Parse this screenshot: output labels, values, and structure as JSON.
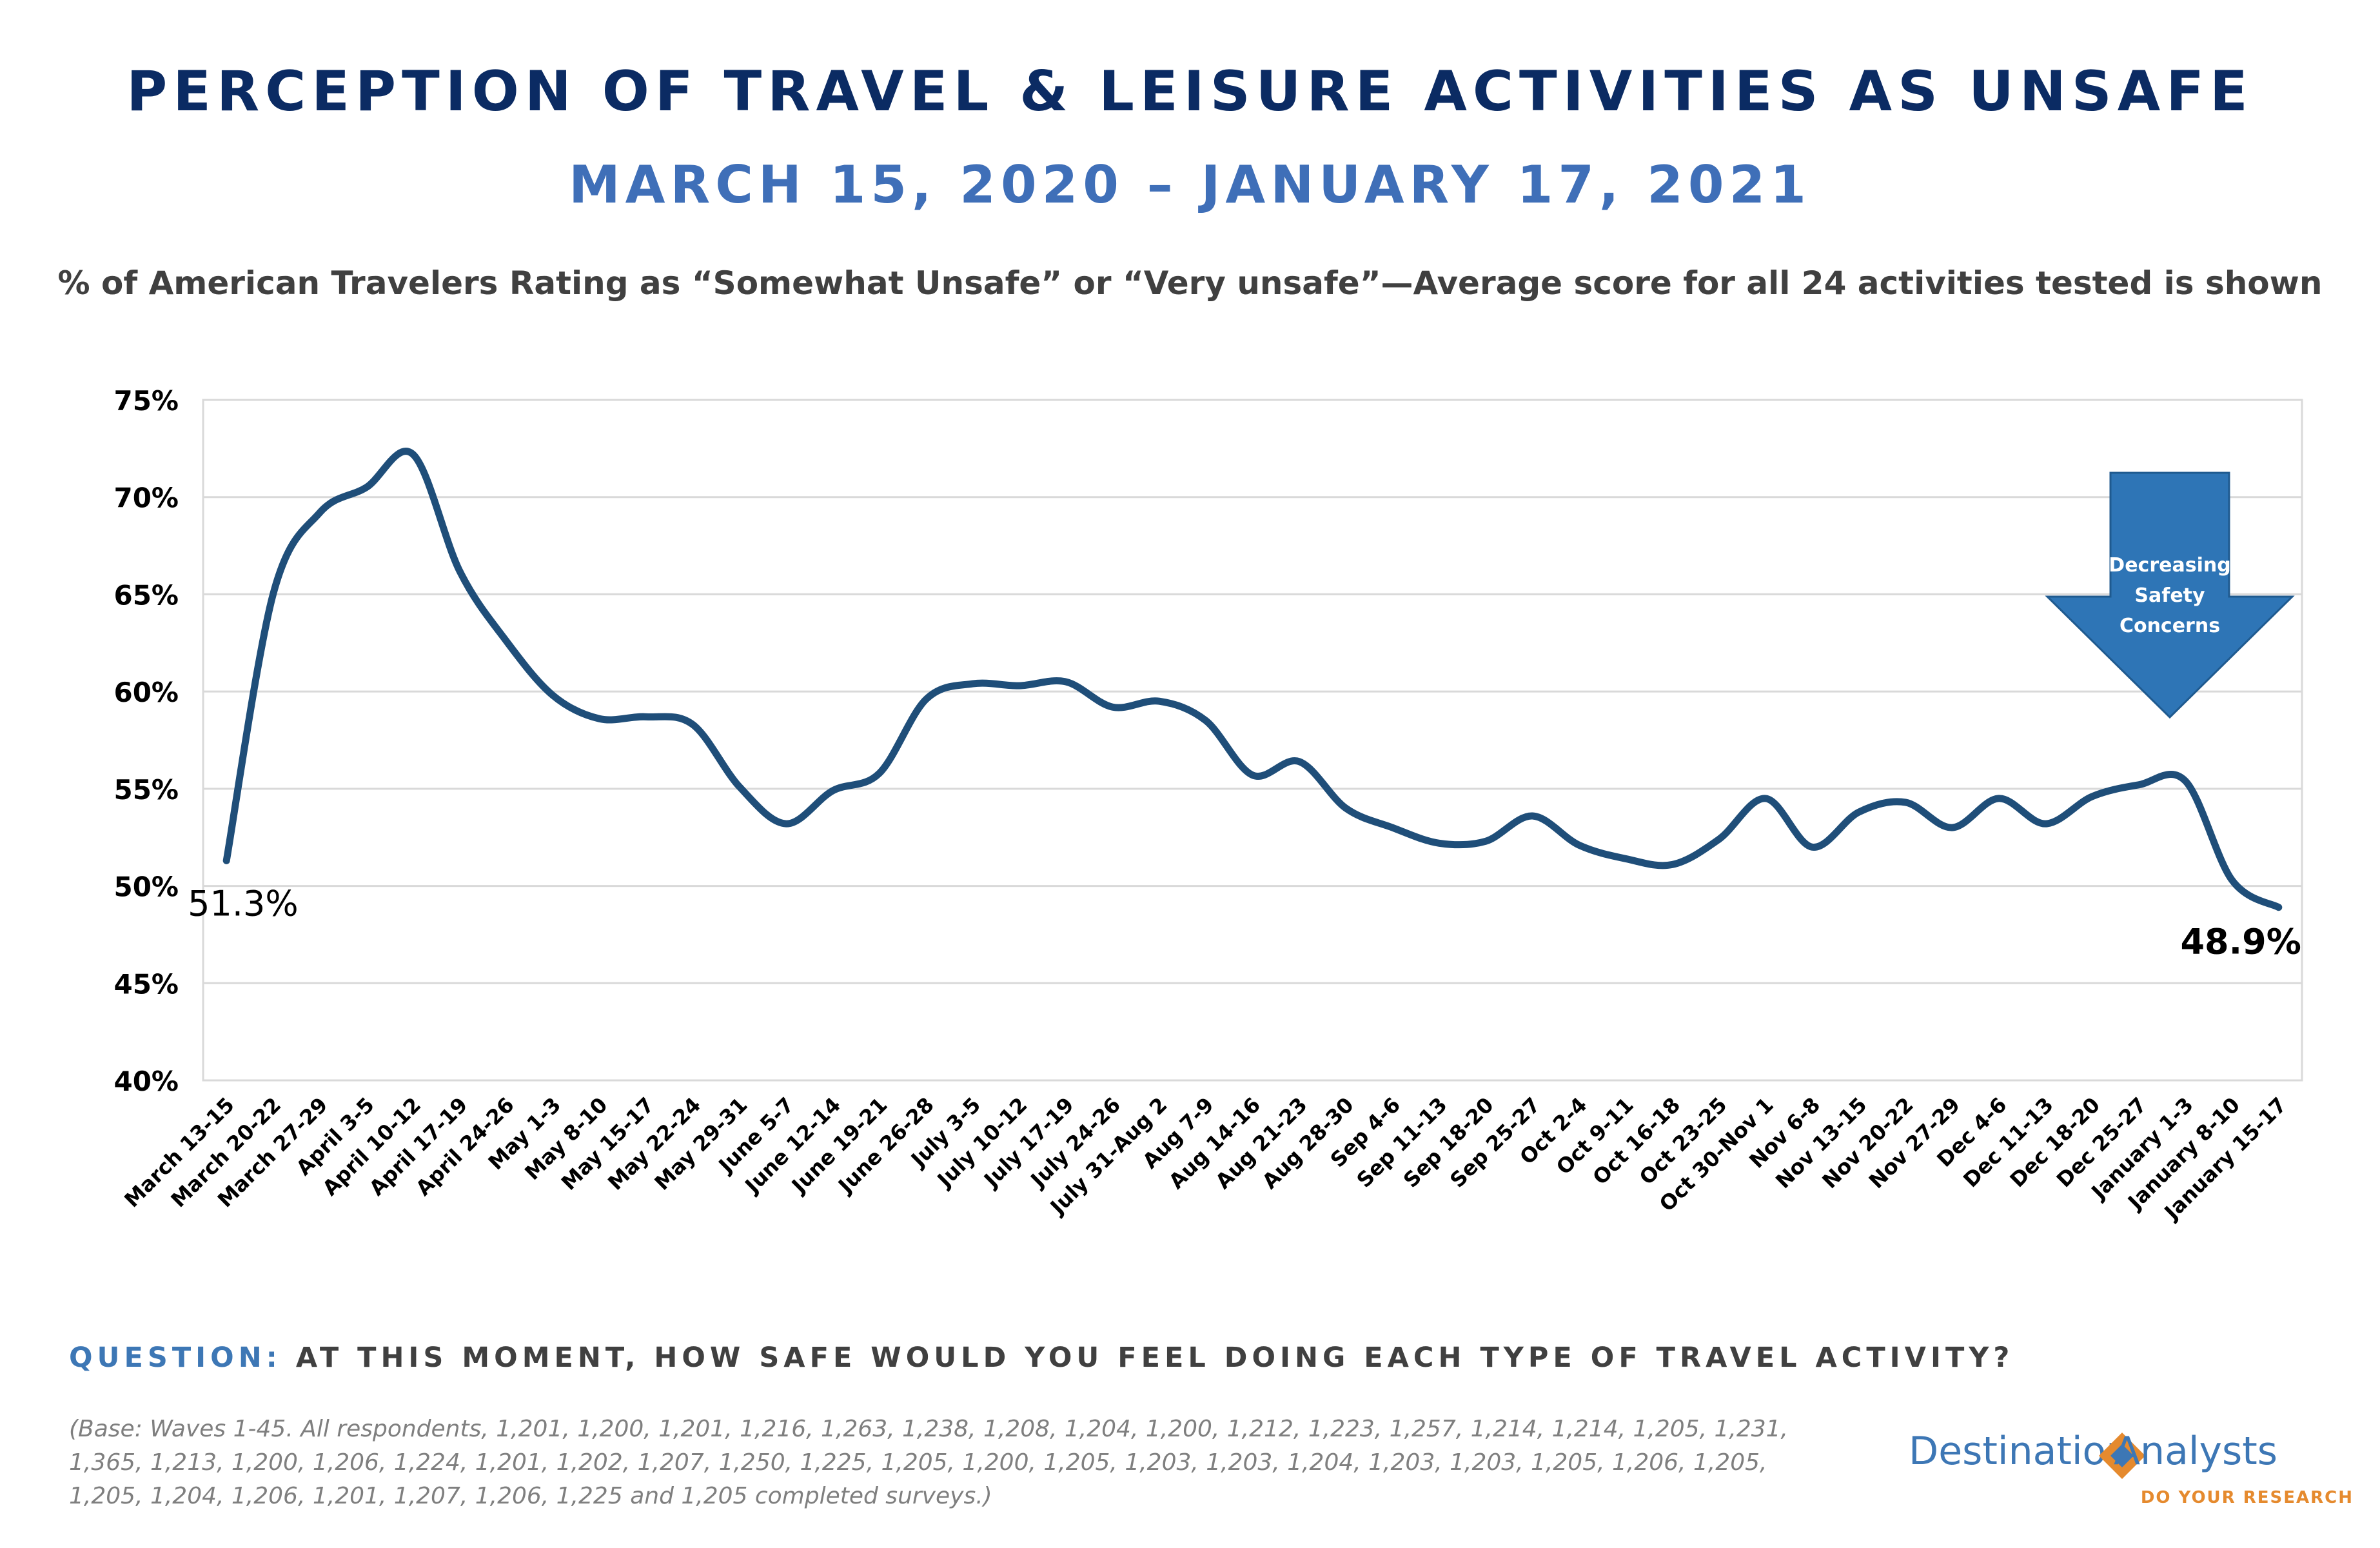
{
  "header": {
    "title": "PERCEPTION OF TRAVEL & LEISURE ACTIVITIES AS UNSAFE",
    "subtitle": "MARCH 15, 2020 – JANUARY 17, 2021",
    "description": "% of American Travelers Rating as “Somewhat Unsafe” or “Very unsafe”—Average score for all 24 activities tested is shown"
  },
  "chart_data": {
    "type": "line",
    "categories": [
      "March 13-15",
      "March 20-22",
      "March 27-29",
      "April 3-5",
      "April 10-12",
      "April 17-19",
      "April 24-26",
      "May 1-3",
      "May 8-10",
      "May 15-17",
      "May 22-24",
      "May 29-31",
      "June 5-7",
      "June 12-14",
      "June 19-21",
      "June 26-28",
      "July 3-5",
      "July 10-12",
      "July 17-19",
      "July 24-26",
      "July 31-Aug 2",
      "Aug 7-9",
      "Aug 14-16",
      "Aug 21-23",
      "Aug 28-30",
      "Sep 4-6",
      "Sep 11-13",
      "Sep 18-20",
      "Sep 25-27",
      "Oct 2-4",
      "Oct 9-11",
      "Oct 16-18",
      "Oct 23-25",
      "Oct 30-Nov 1",
      "Nov 6-8",
      "Nov 13-15",
      "Nov 20-22",
      "Nov 27-29",
      "Dec 4-6",
      "Dec 11-13",
      "Dec 18-20",
      "Dec 25-27",
      "January 1-3",
      "January 8-10",
      "January 15-17"
    ],
    "series": [
      {
        "values": [
          51.3,
          65.0,
          69.2,
          70.5,
          72.2,
          66.2,
          62.6,
          59.8,
          58.6,
          58.7,
          58.3,
          55.1,
          53.2,
          54.9,
          55.8,
          59.6,
          60.4,
          60.3,
          60.5,
          59.2,
          59.5,
          58.5,
          55.7,
          56.4,
          54.0,
          53.0,
          52.2,
          52.3,
          53.6,
          52.1,
          51.4,
          51.1,
          52.4,
          54.5,
          52.0,
          53.8,
          54.3,
          53.0,
          54.5,
          53.2,
          54.6,
          55.2,
          55.4,
          50.3,
          48.9
        ],
        "color": "#1f4e79"
      }
    ],
    "ylim": [
      40,
      75
    ],
    "yticks": [
      "40%",
      "45%",
      "50%",
      "55%",
      "60%",
      "65%",
      "70%",
      "75%"
    ],
    "grid": true,
    "annotations": {
      "start_label": "51.3%",
      "end_label": "48.9%",
      "arrow_text": [
        "Decreasing",
        "Safety",
        "Concerns"
      ],
      "arrow_color": "#2e75b6"
    }
  },
  "footer": {
    "question_label": "QUESTION:",
    "question_text": "AT THIS MOMENT, HOW SAFE WOULD YOU FEEL DOING EACH TYPE OF TRAVEL ACTIVITY?",
    "base_note": "(Base: Waves 1-45. All respondents, 1,201, 1,200, 1,201, 1,216, 1,263, 1,238, 1,208, 1,204, 1,200, 1,212, 1,223, 1,257, 1,214, 1,214, 1,205, 1,231, 1,365, 1,213, 1,200, 1,206, 1,224, 1,201, 1,202, 1,207, 1,250, 1,225, 1,205, 1,200, 1,205, 1,203, 1,203, 1,204, 1,203, 1,203, 1,205, 1,206, 1,205, 1,205, 1,204, 1,206, 1,201, 1,207, 1,206, 1,225 and 1,205 completed surveys.)"
  },
  "logo": {
    "word_left": "Destination",
    "word_right": "Analysts",
    "tagline": "DO YOUR RESEARCH",
    "color_blue": "#3d77b5",
    "color_orange": "#e58a2e"
  }
}
